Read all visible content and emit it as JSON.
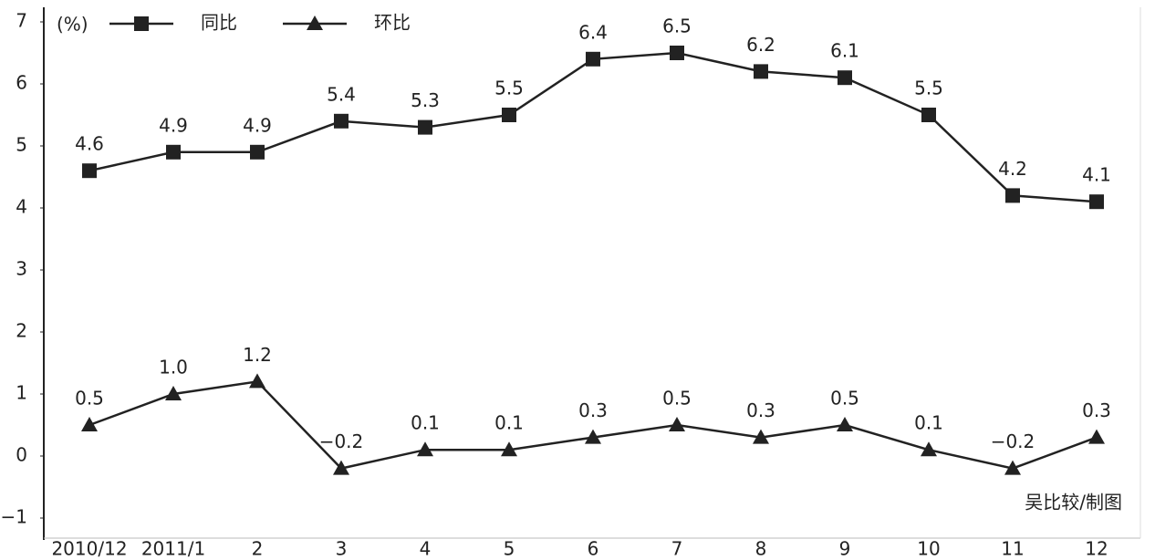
{
  "chart_data": {
    "type": "line",
    "unit_label": "(%)",
    "credit": "吴比较/制图",
    "categories": [
      "2010/12",
      "2011/1",
      "2",
      "3",
      "4",
      "5",
      "6",
      "7",
      "8",
      "9",
      "10",
      "11",
      "12"
    ],
    "ylim": [
      -1,
      7
    ],
    "yticks": [
      {
        "value": -1,
        "label": "−1"
      },
      0,
      1,
      2,
      3,
      4,
      5,
      6,
      7
    ],
    "series": [
      {
        "name": "同比",
        "color": "#222222",
        "marker": "square",
        "values": [
          4.6,
          4.9,
          4.9,
          5.4,
          5.3,
          5.5,
          6.4,
          6.5,
          6.2,
          6.1,
          5.5,
          4.2,
          4.1
        ]
      },
      {
        "name": "环比",
        "color": "#222222",
        "marker": "triangle",
        "values": [
          0.5,
          1.0,
          1.2,
          -0.2,
          0.1,
          0.1,
          0.3,
          0.5,
          0.3,
          0.5,
          0.1,
          -0.2,
          0.3
        ],
        "value_labels": [
          "0.5",
          "1.0",
          "1.2",
          "−0.2",
          "0.1",
          "0.1",
          "0.3",
          "0.5",
          "0.3",
          "0.5",
          "0.1",
          "−0.2",
          "0.3"
        ]
      }
    ]
  }
}
